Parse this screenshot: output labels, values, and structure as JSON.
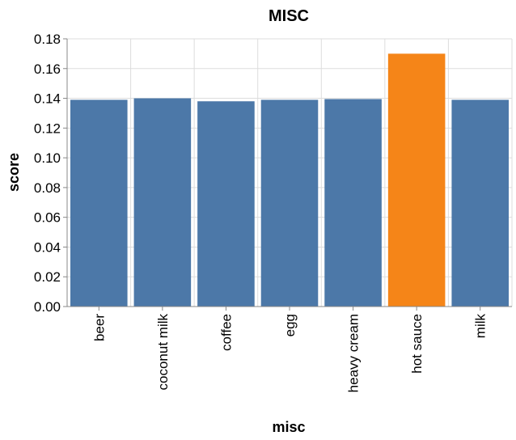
{
  "chart_data": {
    "type": "bar",
    "title": "MISC",
    "xlabel": "misc",
    "ylabel": "score",
    "categories": [
      "beer",
      "coconut milk",
      "coffee",
      "egg",
      "heavy cream",
      "hot sauce",
      "milk"
    ],
    "values": [
      0.139,
      0.14,
      0.138,
      0.139,
      0.1395,
      0.17,
      0.139
    ],
    "highlight": [
      false,
      false,
      false,
      false,
      false,
      true,
      false
    ],
    "ylim": [
      0,
      0.18
    ],
    "yticks": [
      "0.00",
      "0.02",
      "0.04",
      "0.06",
      "0.08",
      "0.10",
      "0.12",
      "0.14",
      "0.16",
      "0.18"
    ],
    "grid": true,
    "colors": {
      "bar": "#4c78a8",
      "highlight": "#f58518"
    }
  }
}
